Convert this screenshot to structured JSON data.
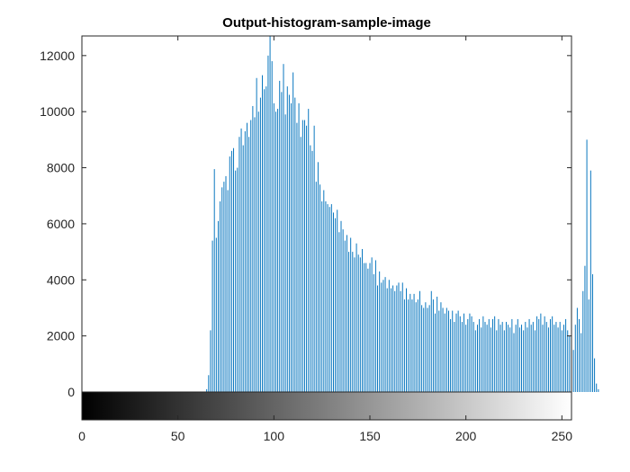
{
  "chart_data": {
    "type": "bar",
    "title": "Output-histogram-sample-image",
    "xlabel": "",
    "ylabel": "",
    "xlim": [
      0,
      255
    ],
    "ylim": [
      0,
      12700
    ],
    "x_ticks": [
      "0",
      "50",
      "100",
      "150",
      "200",
      "250"
    ],
    "y_ticks": [
      "0",
      "2000",
      "4000",
      "6000",
      "8000",
      "10000",
      "12000"
    ],
    "grid": false,
    "legend": "none",
    "colorbar": "grayscale 0-255 below x-axis",
    "colors": {
      "bars": "#0072bd",
      "axes": "#262626",
      "background": "#ffffff"
    },
    "bins_start": 64,
    "bins_step": 1,
    "values": [
      0,
      100,
      600,
      2200,
      5400,
      7950,
      5500,
      6100,
      6800,
      7300,
      7500,
      7700,
      7200,
      8400,
      8600,
      8700,
      7900,
      8000,
      9100,
      9400,
      8800,
      9300,
      9600,
      9100,
      9700,
      10200,
      9800,
      11200,
      10000,
      10500,
      11300,
      10800,
      10900,
      12000,
      12700,
      11800,
      10300,
      10000,
      10100,
      11100,
      10700,
      11700,
      9900,
      10900,
      10600,
      10300,
      11400,
      10500,
      9600,
      10300,
      9100,
      9700,
      9700,
      9500,
      10100,
      8800,
      8600,
      9500,
      7500,
      8200,
      7400,
      6800,
      7200,
      6800,
      6700,
      6600,
      6700,
      6400,
      6200,
      6500,
      5700,
      6100,
      5800,
      5400,
      5600,
      5000,
      5500,
      5000,
      4800,
      5300,
      4900,
      4800,
      5100,
      4600,
      4600,
      4400,
      4600,
      4800,
      4200,
      4700,
      3800,
      4300,
      3900,
      4000,
      4100,
      3700,
      4000,
      3700,
      3800,
      3600,
      3800,
      3900,
      3600,
      3900,
      3300,
      3700,
      3300,
      3500,
      3300,
      3500,
      3200,
      3300,
      3600,
      3100,
      3000,
      3200,
      3000,
      3100,
      3600,
      3300,
      2800,
      3400,
      2900,
      3200,
      3000,
      2800,
      3000,
      2900,
      2600,
      2900,
      2500,
      2800,
      2900,
      2700,
      2500,
      2800,
      2400,
      2600,
      2800,
      2700,
      2500,
      2200,
      2400,
      2600,
      2300,
      2700,
      2500,
      2400,
      2600,
      2300,
      2600,
      2700,
      2200,
      2600,
      2400,
      2500,
      2200,
      2500,
      2400,
      2300,
      2600,
      2100,
      2400,
      2600,
      2300,
      2400,
      2200,
      2500,
      2300,
      2600,
      2400,
      2500,
      2200,
      2700,
      2600,
      2800,
      2400,
      2700,
      2500,
      2300,
      2600,
      2700,
      2400,
      2500,
      2300,
      2500,
      2200,
      2400,
      2600,
      2200,
      2000,
      2300,
      1500,
      2400,
      3000,
      2600,
      2100,
      3600,
      4500,
      9000,
      3300,
      7900,
      4200,
      1200,
      300,
      100
    ]
  }
}
